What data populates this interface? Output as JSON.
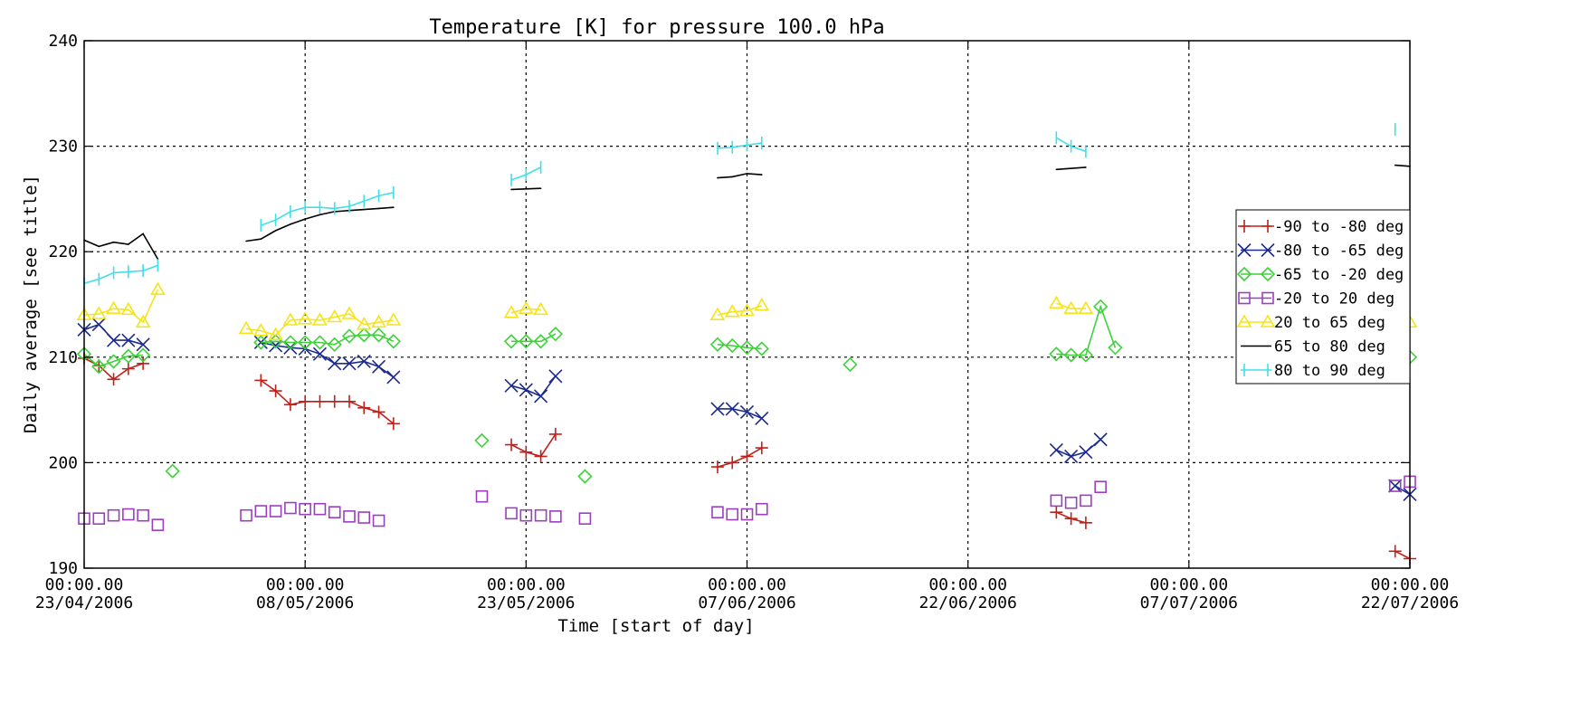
{
  "chart_data": {
    "type": "line",
    "title": "Temperature [K] for pressure 100.0 hPa",
    "xlabel": "Time [start of day]",
    "ylabel": "Daily average [see title]",
    "xlim": [
      "2006-04-23",
      "2006-07-22"
    ],
    "ylim": [
      190,
      240
    ],
    "grid": true,
    "legend_position": "right",
    "x_ticks": [
      {
        "time": "00:00.00",
        "date": "23/04/2006",
        "day": "2006-04-23"
      },
      {
        "time": "00:00.00",
        "date": "08/05/2006",
        "day": "2006-05-08"
      },
      {
        "time": "00:00.00",
        "date": "23/05/2006",
        "day": "2006-05-23"
      },
      {
        "time": "00:00.00",
        "date": "07/06/2006",
        "day": "2006-06-07"
      },
      {
        "time": "00:00.00",
        "date": "22/06/2006",
        "day": "2006-06-22"
      },
      {
        "time": "00:00.00",
        "date": "07/07/2006",
        "day": "2006-07-07"
      },
      {
        "time": "00:00.00",
        "date": "22/07/2006",
        "day": "2006-07-22"
      }
    ],
    "y_ticks": [
      190,
      200,
      210,
      220,
      230,
      240
    ],
    "series": [
      {
        "name": "-90 to -80 deg",
        "color": "#c0201a",
        "marker": "plus",
        "line": true,
        "segments": [
          [
            [
              "2006-04-23",
              209.9
            ],
            [
              "2006-04-24",
              209.2
            ],
            [
              "2006-04-25",
              207.9
            ],
            [
              "2006-04-26",
              208.9
            ],
            [
              "2006-04-27",
              209.4
            ]
          ],
          [
            [
              "2006-05-05",
              207.8
            ],
            [
              "2006-05-06",
              206.8
            ],
            [
              "2006-05-07",
              205.5
            ],
            [
              "2006-05-08",
              205.8
            ],
            [
              "2006-05-09",
              205.8
            ],
            [
              "2006-05-10",
              205.8
            ],
            [
              "2006-05-11",
              205.8
            ],
            [
              "2006-05-12",
              205.2
            ],
            [
              "2006-05-13",
              204.8
            ],
            [
              "2006-05-14",
              203.7
            ]
          ],
          [
            [
              "2006-05-22",
              201.7
            ],
            [
              "2006-05-23",
              201.0
            ],
            [
              "2006-05-24",
              200.6
            ],
            [
              "2006-05-25",
              202.7
            ]
          ],
          [
            [
              "2006-06-05",
              199.6
            ],
            [
              "2006-06-06",
              200.0
            ],
            [
              "2006-06-07",
              200.6
            ],
            [
              "2006-06-08",
              201.4
            ]
          ],
          [
            [
              "2006-06-28",
              195.3
            ],
            [
              "2006-06-29",
              194.7
            ],
            [
              "2006-06-30",
              194.3
            ]
          ],
          [
            [
              "2006-07-21",
              191.6
            ],
            [
              "2006-07-22",
              190.9
            ]
          ]
        ]
      },
      {
        "name": "-80 to -65 deg",
        "color": "#1c2a8c",
        "marker": "x",
        "line": true,
        "segments": [
          [
            [
              "2006-04-23",
              212.6
            ],
            [
              "2006-04-24",
              213.1
            ],
            [
              "2006-04-25",
              211.6
            ],
            [
              "2006-04-26",
              211.6
            ],
            [
              "2006-04-27",
              211.2
            ]
          ],
          [
            [
              "2006-05-05",
              211.4
            ],
            [
              "2006-05-06",
              211.1
            ],
            [
              "2006-05-07",
              210.9
            ],
            [
              "2006-05-08",
              210.8
            ],
            [
              "2006-05-09",
              210.3
            ],
            [
              "2006-05-10",
              209.4
            ],
            [
              "2006-05-11",
              209.4
            ],
            [
              "2006-05-12",
              209.6
            ],
            [
              "2006-05-13",
              209.1
            ],
            [
              "2006-05-14",
              208.1
            ]
          ],
          [
            [
              "2006-05-22",
              207.3
            ],
            [
              "2006-05-23",
              206.9
            ],
            [
              "2006-05-24",
              206.3
            ],
            [
              "2006-05-25",
              208.2
            ]
          ],
          [
            [
              "2006-06-05",
              205.1
            ],
            [
              "2006-06-06",
              205.1
            ],
            [
              "2006-06-07",
              204.8
            ],
            [
              "2006-06-08",
              204.2
            ]
          ],
          [
            [
              "2006-06-28",
              201.2
            ],
            [
              "2006-06-29",
              200.6
            ],
            [
              "2006-06-30",
              201.0
            ],
            [
              "2006-07-01",
              202.2
            ]
          ],
          [
            [
              "2006-07-21",
              197.8
            ],
            [
              "2006-07-22",
              197.0
            ]
          ]
        ]
      },
      {
        "name": "-65 to -20 deg",
        "color": "#3ed13a",
        "marker": "diamond",
        "line": true,
        "segments": [
          [
            [
              "2006-04-23",
              210.3
            ],
            [
              "2006-04-24",
              209.1
            ],
            [
              "2006-04-25",
              209.6
            ],
            [
              "2006-04-26",
              210.1
            ],
            [
              "2006-04-27",
              210.2
            ]
          ],
          [
            [
              "2006-04-29",
              199.2
            ]
          ],
          [
            [
              "2006-05-05",
              211.4
            ],
            [
              "2006-05-06",
              211.5
            ],
            [
              "2006-05-07",
              211.4
            ],
            [
              "2006-05-08",
              211.4
            ],
            [
              "2006-05-09",
              211.4
            ],
            [
              "2006-05-10",
              211.2
            ],
            [
              "2006-05-11",
              212.0
            ],
            [
              "2006-05-12",
              212.1
            ],
            [
              "2006-05-13",
              212.1
            ],
            [
              "2006-05-14",
              211.5
            ]
          ],
          [
            [
              "2006-05-20",
              202.1
            ]
          ],
          [
            [
              "2006-05-22",
              211.5
            ],
            [
              "2006-05-23",
              211.5
            ],
            [
              "2006-05-24",
              211.5
            ],
            [
              "2006-05-25",
              212.2
            ]
          ],
          [
            [
              "2006-05-27",
              198.7
            ]
          ],
          [
            [
              "2006-06-05",
              211.2
            ],
            [
              "2006-06-06",
              211.1
            ],
            [
              "2006-06-07",
              210.9
            ],
            [
              "2006-06-08",
              210.8
            ]
          ],
          [
            [
              "2006-06-14",
              209.3
            ]
          ],
          [
            [
              "2006-06-28",
              210.3
            ],
            [
              "2006-06-29",
              210.2
            ],
            [
              "2006-06-30",
              210.2
            ],
            [
              "2006-07-01",
              214.8
            ],
            [
              "2006-07-02",
              210.9
            ]
          ],
          [
            [
              "2006-07-21",
              210.3
            ],
            [
              "2006-07-22",
              210.0
            ]
          ]
        ]
      },
      {
        "name": "-20 to 20 deg",
        "color": "#9b3fc0",
        "marker": "square",
        "line": false,
        "segments": [
          [
            [
              "2006-04-23",
              194.7
            ],
            [
              "2006-04-24",
              194.7
            ],
            [
              "2006-04-25",
              195.0
            ],
            [
              "2006-04-26",
              195.1
            ],
            [
              "2006-04-27",
              195.0
            ],
            [
              "2006-04-28",
              194.1
            ]
          ],
          [
            [
              "2006-05-04",
              195.0
            ],
            [
              "2006-05-05",
              195.4
            ],
            [
              "2006-05-06",
              195.4
            ],
            [
              "2006-05-07",
              195.7
            ],
            [
              "2006-05-08",
              195.6
            ],
            [
              "2006-05-09",
              195.6
            ],
            [
              "2006-05-10",
              195.3
            ],
            [
              "2006-05-11",
              194.9
            ],
            [
              "2006-05-12",
              194.8
            ],
            [
              "2006-05-13",
              194.5
            ]
          ],
          [
            [
              "2006-05-20",
              196.8
            ]
          ],
          [
            [
              "2006-05-22",
              195.2
            ],
            [
              "2006-05-23",
              195.0
            ],
            [
              "2006-05-24",
              195.0
            ],
            [
              "2006-05-25",
              194.9
            ]
          ],
          [
            [
              "2006-05-27",
              194.7
            ]
          ],
          [
            [
              "2006-06-05",
              195.3
            ],
            [
              "2006-06-06",
              195.1
            ],
            [
              "2006-06-07",
              195.1
            ],
            [
              "2006-06-08",
              195.6
            ]
          ],
          [
            [
              "2006-06-28",
              196.4
            ],
            [
              "2006-06-29",
              196.2
            ],
            [
              "2006-06-30",
              196.4
            ],
            [
              "2006-07-01",
              197.7
            ]
          ],
          [
            [
              "2006-07-21",
              197.8
            ],
            [
              "2006-07-22",
              198.2
            ]
          ]
        ]
      },
      {
        "name": "20 to 65 deg",
        "color": "#f5e419",
        "marker": "triangle",
        "line": true,
        "segments": [
          [
            [
              "2006-04-23",
              214.0
            ],
            [
              "2006-04-24",
              214.1
            ],
            [
              "2006-04-25",
              214.6
            ],
            [
              "2006-04-26",
              214.5
            ],
            [
              "2006-04-27",
              213.3
            ],
            [
              "2006-04-28",
              216.4
            ]
          ],
          [
            [
              "2006-05-04",
              212.7
            ],
            [
              "2006-05-05",
              212.5
            ],
            [
              "2006-05-06",
              212.1
            ],
            [
              "2006-05-07",
              213.5
            ],
            [
              "2006-05-08",
              213.6
            ],
            [
              "2006-05-09",
              213.5
            ],
            [
              "2006-05-10",
              213.8
            ],
            [
              "2006-05-11",
              214.1
            ],
            [
              "2006-05-12",
              213.1
            ],
            [
              "2006-05-13",
              213.3
            ],
            [
              "2006-05-14",
              213.5
            ]
          ],
          [
            [
              "2006-05-22",
              214.2
            ],
            [
              "2006-05-23",
              214.6
            ],
            [
              "2006-05-24",
              214.5
            ]
          ],
          [
            [
              "2006-06-05",
              214.0
            ],
            [
              "2006-06-06",
              214.3
            ],
            [
              "2006-06-07",
              214.4
            ],
            [
              "2006-06-08",
              214.9
            ]
          ],
          [
            [
              "2006-06-28",
              215.1
            ],
            [
              "2006-06-29",
              214.6
            ],
            [
              "2006-06-30",
              214.6
            ]
          ],
          [
            [
              "2006-07-21",
              212.8
            ],
            [
              "2006-07-22",
              213.3
            ]
          ]
        ]
      },
      {
        "name": "65 to 80 deg",
        "color": "#000000",
        "marker": "none",
        "line": true,
        "segments": [
          [
            [
              "2006-04-23",
              221.1
            ],
            [
              "2006-04-24",
              220.5
            ],
            [
              "2006-04-25",
              220.9
            ],
            [
              "2006-04-26",
              220.7
            ],
            [
              "2006-04-27",
              221.7
            ],
            [
              "2006-04-28",
              219.3
            ]
          ],
          [
            [
              "2006-05-04",
              221.0
            ],
            [
              "2006-05-05",
              221.2
            ],
            [
              "2006-05-06",
              222.0
            ],
            [
              "2006-05-07",
              222.6
            ],
            [
              "2006-05-08",
              223.1
            ],
            [
              "2006-05-09",
              223.5
            ],
            [
              "2006-05-10",
              223.8
            ],
            [
              "2006-05-11",
              223.9
            ],
            [
              "2006-05-12",
              224.0
            ],
            [
              "2006-05-13",
              224.1
            ],
            [
              "2006-05-14",
              224.2
            ]
          ],
          [
            [
              "2006-05-22",
              225.9
            ],
            [
              "2006-05-24",
              226.0
            ]
          ],
          [
            [
              "2006-06-05",
              227.0
            ],
            [
              "2006-06-06",
              227.1
            ],
            [
              "2006-06-07",
              227.4
            ],
            [
              "2006-06-08",
              227.3
            ]
          ],
          [
            [
              "2006-06-28",
              227.8
            ],
            [
              "2006-06-30",
              228.0
            ]
          ],
          [
            [
              "2006-07-21",
              228.2
            ],
            [
              "2006-07-22",
              228.1
            ]
          ]
        ]
      },
      {
        "name": "80 to 90 deg",
        "color": "#3fe0e8",
        "marker": "hbar",
        "line": true,
        "segments": [
          [
            [
              "2006-04-23",
              217.0
            ],
            [
              "2006-04-24",
              217.4
            ],
            [
              "2006-04-25",
              218.0
            ],
            [
              "2006-04-26",
              218.1
            ],
            [
              "2006-04-27",
              218.2
            ],
            [
              "2006-04-28",
              218.7
            ]
          ],
          [
            [
              "2006-05-05",
              222.5
            ],
            [
              "2006-05-06",
              223.0
            ],
            [
              "2006-05-07",
              223.8
            ],
            [
              "2006-05-08",
              224.2
            ],
            [
              "2006-05-09",
              224.2
            ],
            [
              "2006-05-10",
              224.1
            ],
            [
              "2006-05-11",
              224.3
            ],
            [
              "2006-05-12",
              224.8
            ],
            [
              "2006-05-13",
              225.3
            ],
            [
              "2006-05-14",
              225.6
            ]
          ],
          [
            [
              "2006-05-22",
              226.8
            ],
            [
              "2006-05-23",
              227.3
            ],
            [
              "2006-05-24",
              228.0
            ]
          ],
          [
            [
              "2006-06-05",
              229.8
            ],
            [
              "2006-06-06",
              229.9
            ],
            [
              "2006-06-07",
              230.1
            ],
            [
              "2006-06-08",
              230.3
            ]
          ],
          [
            [
              "2006-06-28",
              230.8
            ],
            [
              "2006-06-29",
              230.0
            ],
            [
              "2006-06-30",
              229.5
            ]
          ],
          [
            [
              "2006-07-21",
              231.6
            ]
          ]
        ]
      }
    ]
  }
}
